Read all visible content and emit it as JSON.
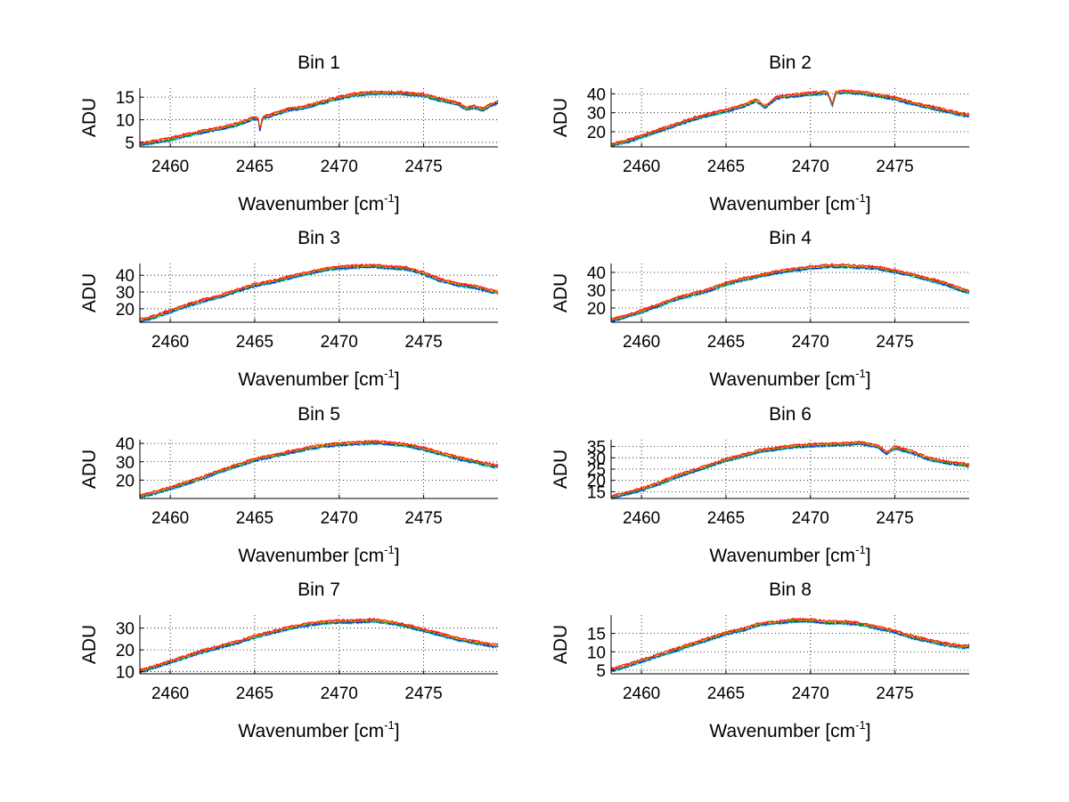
{
  "chart_data": [
    {
      "type": "line",
      "title": "Bin 1",
      "ylabel": "ADU",
      "xlabel": "Wavenumber [cm",
      "xlabel_sup": "-1",
      "xlabel_suffix": "]",
      "xlim": [
        2458.2,
        2479.4
      ],
      "ylim": [
        4,
        17
      ],
      "xticks": [
        2460,
        2465,
        2470,
        2475
      ],
      "yticks": [
        5,
        10,
        15
      ],
      "grid": true,
      "series_colors": [
        "#00bfbf",
        "#0000ff",
        "#00a000",
        "#ff9900",
        "#ff0000"
      ],
      "x": [
        2458.2,
        2459,
        2460,
        2461,
        2462,
        2463,
        2464,
        2465,
        2465.2,
        2465.3,
        2465.5,
        2466,
        2467,
        2468,
        2469,
        2470,
        2471,
        2472,
        2473,
        2474,
        2475,
        2476,
        2477,
        2477.5,
        2478,
        2478.5,
        2479,
        2479.4
      ],
      "y": [
        4.5,
        5,
        5.7,
        6.6,
        7.4,
        8.1,
        9,
        10.4,
        10.2,
        7.8,
        10.5,
        11,
        12.2,
        12.8,
        13.8,
        14.8,
        15.6,
        15.9,
        15.9,
        15.8,
        15.4,
        14.4,
        13.6,
        12.5,
        12.8,
        12.2,
        13.3,
        13.9
      ]
    },
    {
      "type": "line",
      "title": "Bin 2",
      "ylabel": "ADU",
      "xlabel": "Wavenumber [cm",
      "xlabel_sup": "-1",
      "xlabel_suffix": "]",
      "xlim": [
        2458.2,
        2479.4
      ],
      "ylim": [
        12,
        43
      ],
      "xticks": [
        2460,
        2465,
        2470,
        2475
      ],
      "yticks": [
        20,
        30,
        40
      ],
      "grid": true,
      "series_colors": [
        "#00bfbf",
        "#0000ff",
        "#00a000",
        "#ff9900",
        "#ff0000"
      ],
      "x": [
        2458.2,
        2459,
        2460,
        2461,
        2462,
        2463,
        2464,
        2465,
        2466,
        2466.8,
        2467.3,
        2468,
        2469,
        2470,
        2471,
        2471.3,
        2471.5,
        2472,
        2473,
        2474,
        2475,
        2476,
        2477,
        2478,
        2479,
        2479.4
      ],
      "y": [
        13,
        14.5,
        17.5,
        20.5,
        23.5,
        26.5,
        29,
        31,
        33.5,
        36.5,
        33,
        38,
        39,
        40,
        40.5,
        34,
        40.5,
        41,
        40.5,
        39,
        37.5,
        35,
        33,
        31,
        29,
        28.5
      ]
    },
    {
      "type": "line",
      "title": "Bin 3",
      "ylabel": "ADU",
      "xlabel": "Wavenumber [cm",
      "xlabel_sup": "-1",
      "xlabel_suffix": "]",
      "xlim": [
        2458.2,
        2479.4
      ],
      "ylim": [
        12,
        47
      ],
      "xticks": [
        2460,
        2465,
        2470,
        2475
      ],
      "yticks": [
        20,
        30,
        40
      ],
      "grid": true,
      "series_colors": [
        "#00bfbf",
        "#0000ff",
        "#00a000",
        "#ff9900",
        "#ff0000"
      ],
      "x": [
        2458.2,
        2459,
        2460,
        2461,
        2462,
        2463,
        2464,
        2465,
        2466,
        2467,
        2468,
        2469,
        2470,
        2471,
        2472,
        2473,
        2474,
        2475,
        2476,
        2477,
        2478,
        2479,
        2479.4
      ],
      "y": [
        13,
        15,
        18.5,
        22,
        25,
        27.5,
        31,
        34,
        36,
        38.5,
        41,
        43,
        44.5,
        45,
        45.5,
        44.5,
        44,
        41,
        37,
        34.5,
        33,
        30.5,
        29.5
      ]
    },
    {
      "type": "line",
      "title": "Bin 4",
      "ylabel": "ADU",
      "xlabel": "Wavenumber [cm",
      "xlabel_sup": "-1",
      "xlabel_suffix": "]",
      "xlim": [
        2458.2,
        2479.4
      ],
      "ylim": [
        12,
        45
      ],
      "xticks": [
        2460,
        2465,
        2470,
        2475
      ],
      "yticks": [
        20,
        30,
        40
      ],
      "grid": true,
      "series_colors": [
        "#00bfbf",
        "#0000ff",
        "#00a000",
        "#ff9900",
        "#ff0000"
      ],
      "x": [
        2458.2,
        2459,
        2460,
        2461,
        2462,
        2463,
        2464,
        2465,
        2466,
        2467,
        2468,
        2469,
        2470,
        2471,
        2472,
        2473,
        2474,
        2475,
        2476,
        2477,
        2478,
        2479,
        2479.4
      ],
      "y": [
        13,
        15,
        18,
        21.5,
        25,
        27.5,
        30,
        33.5,
        36,
        38,
        40,
        41.5,
        42.5,
        43.5,
        43.5,
        43,
        42.5,
        40.5,
        38.5,
        36,
        33.5,
        30,
        29
      ]
    },
    {
      "type": "line",
      "title": "Bin 5",
      "ylabel": "ADU",
      "xlabel": "Wavenumber [cm",
      "xlabel_sup": "-1",
      "xlabel_suffix": "]",
      "xlim": [
        2458.2,
        2479.4
      ],
      "ylim": [
        10,
        42
      ],
      "xticks": [
        2460,
        2465,
        2470,
        2475
      ],
      "yticks": [
        20,
        30,
        40
      ],
      "grid": true,
      "series_colors": [
        "#00bfbf",
        "#0000ff",
        "#00a000",
        "#ff9900",
        "#ff0000"
      ],
      "x": [
        2458.2,
        2459,
        2460,
        2461,
        2462,
        2463,
        2464,
        2465,
        2466,
        2467,
        2468,
        2469,
        2470,
        2471,
        2472,
        2473,
        2474,
        2475,
        2476,
        2477,
        2478,
        2479,
        2479.4
      ],
      "y": [
        11,
        13,
        15.5,
        18.5,
        21.5,
        25,
        28,
        31,
        33,
        35,
        37,
        38.5,
        39.5,
        40,
        40.5,
        40,
        39,
        37,
        34.5,
        32,
        30,
        28,
        27.5
      ]
    },
    {
      "type": "line",
      "title": "Bin 6",
      "ylabel": "ADU",
      "xlabel": "Wavenumber [cm",
      "xlabel_sup": "-1",
      "xlabel_suffix": "]",
      "xlim": [
        2458.2,
        2479.4
      ],
      "ylim": [
        12,
        38
      ],
      "xticks": [
        2460,
        2465,
        2470,
        2475
      ],
      "yticks": [
        15,
        20,
        25,
        30,
        35
      ],
      "grid": true,
      "series_colors": [
        "#00bfbf",
        "#0000ff",
        "#00a000",
        "#ff9900",
        "#ff0000"
      ],
      "x": [
        2458.2,
        2459,
        2460,
        2461,
        2462,
        2463,
        2464,
        2465,
        2466,
        2467,
        2468,
        2469,
        2470,
        2471,
        2472,
        2473,
        2474,
        2474.5,
        2475,
        2476,
        2477,
        2478,
        2479,
        2479.4
      ],
      "y": [
        12.5,
        14,
        16,
        18.5,
        21.5,
        24,
        26.5,
        29,
        31,
        33,
        34,
        35,
        35.5,
        35.8,
        36,
        36.5,
        35,
        32,
        34.5,
        32.5,
        29.5,
        28,
        27,
        26.5
      ]
    },
    {
      "type": "line",
      "title": "Bin 7",
      "ylabel": "ADU",
      "xlabel": "Wavenumber [cm",
      "xlabel_sup": "-1",
      "xlabel_suffix": "]",
      "xlim": [
        2458.2,
        2479.4
      ],
      "ylim": [
        9,
        36
      ],
      "xticks": [
        2460,
        2465,
        2470,
        2475
      ],
      "yticks": [
        10,
        20,
        30
      ],
      "grid": true,
      "series_colors": [
        "#00bfbf",
        "#0000ff",
        "#00a000",
        "#ff9900",
        "#ff0000"
      ],
      "x": [
        2458.2,
        2459,
        2460,
        2461,
        2462,
        2463,
        2464,
        2465,
        2466,
        2467,
        2468,
        2469,
        2470,
        2471,
        2472,
        2473,
        2474,
        2475,
        2476,
        2477,
        2478,
        2479,
        2479.4
      ],
      "y": [
        10,
        12,
        14.5,
        17,
        19.5,
        21.5,
        23.5,
        26,
        28,
        30,
        31.5,
        32.5,
        33,
        33,
        33.5,
        32.5,
        31,
        29,
        27,
        25,
        23.5,
        22,
        22
      ]
    },
    {
      "type": "line",
      "title": "Bin 8",
      "ylabel": "ADU",
      "xlabel": "Wavenumber [cm",
      "xlabel_sup": "-1",
      "xlabel_suffix": "]",
      "xlim": [
        2458.2,
        2479.4
      ],
      "ylim": [
        4,
        20
      ],
      "xticks": [
        2460,
        2465,
        2470,
        2475
      ],
      "yticks": [
        5,
        10,
        15
      ],
      "grid": true,
      "series_colors": [
        "#00bfbf",
        "#0000ff",
        "#00a000",
        "#ff9900",
        "#ff0000"
      ],
      "x": [
        2458.2,
        2459,
        2460,
        2461,
        2462,
        2463,
        2464,
        2465,
        2466,
        2467,
        2468,
        2469,
        2470,
        2471,
        2472,
        2473,
        2474,
        2475,
        2476,
        2477,
        2478,
        2479,
        2479.4
      ],
      "y": [
        5,
        6,
        7.5,
        9,
        10.5,
        12,
        13.5,
        15,
        16,
        17.5,
        18,
        18.5,
        18.5,
        18,
        18,
        17.5,
        16.5,
        15.5,
        14,
        13,
        12,
        11.3,
        11.5
      ]
    }
  ]
}
